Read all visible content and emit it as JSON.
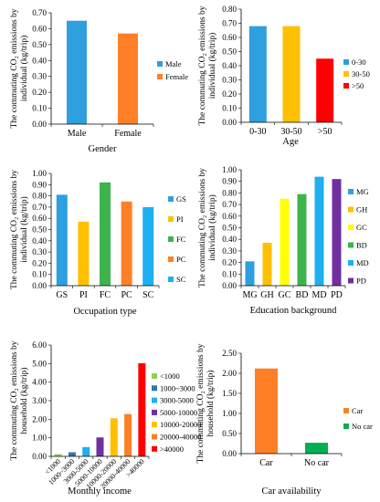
{
  "chart_data": [
    {
      "type": "bar",
      "ylabel_lines": [
        "The commuting CO₂ emissions by",
        "individual (kg/trip)"
      ],
      "xlabel": "Gender",
      "ylim": [
        0,
        0.7
      ],
      "yticks": [
        "0.00",
        "0.10",
        "0.20",
        "0.30",
        "0.40",
        "0.50",
        "0.60",
        "0.70"
      ],
      "categories": [
        "Male",
        "Female"
      ],
      "values": [
        0.65,
        0.57
      ],
      "colors": [
        "#2E9FDF",
        "#FF7F27"
      ],
      "legend": [
        "Male",
        "Female"
      ],
      "legend_placement": "right",
      "grid": false
    },
    {
      "type": "bar",
      "ylabel_lines": [
        "The commuting CO₂ emissions by",
        "individual (kg/trip)"
      ],
      "xlabel": "Age",
      "ylim": [
        0,
        0.8
      ],
      "yticks": [
        "0.00",
        "0.10",
        "0.20",
        "0.30",
        "0.40",
        "0.50",
        "0.60",
        "0.70",
        "0.80"
      ],
      "categories": [
        "0-30",
        "30-50",
        ">50"
      ],
      "values": [
        0.68,
        0.68,
        0.45
      ],
      "colors": [
        "#2E9FDF",
        "#FFC000",
        "#FF0000"
      ],
      "legend": [
        "0-30",
        "30-50",
        ">50"
      ],
      "legend_placement": "right",
      "grid": false
    },
    {
      "type": "bar",
      "ylabel_lines": [
        "The commuting CO₂ emissions by",
        "individual (kg/trip)"
      ],
      "xlabel": "Occupation type",
      "ylim": [
        0,
        1.0
      ],
      "yticks": [
        "0.00",
        "0.10",
        "0.20",
        "0.30",
        "0.40",
        "0.50",
        "0.60",
        "0.70",
        "0.80",
        "0.90",
        "1.00"
      ],
      "categories": [
        "GS",
        "PI",
        "FC",
        "PC",
        "SC"
      ],
      "values": [
        0.81,
        0.57,
        0.92,
        0.75,
        0.7
      ],
      "colors": [
        "#2E9FDF",
        "#FFC000",
        "#3CB44B",
        "#FF7F27",
        "#1EB0F0"
      ],
      "legend": [
        "GS",
        "PI",
        "FC",
        "PC",
        "SC"
      ],
      "legend_placement": "right",
      "grid": false
    },
    {
      "type": "bar",
      "ylabel_lines": [
        "The commuting CO₂ emissions by",
        "individual (kg/trip)"
      ],
      "xlabel": "Education background",
      "ylim": [
        0,
        1.0
      ],
      "yticks": [
        "0.00",
        "0.10",
        "0.20",
        "0.30",
        "0.40",
        "0.50",
        "0.60",
        "0.70",
        "0.80",
        "0.90",
        "1.00"
      ],
      "categories": [
        "MG",
        "GH",
        "GC",
        "BD",
        "MD",
        "PD"
      ],
      "values": [
        0.21,
        0.37,
        0.75,
        0.79,
        0.94,
        0.92
      ],
      "colors": [
        "#2E9FDF",
        "#FFC000",
        "#FFFF00",
        "#3CB44B",
        "#1EB0F0",
        "#7030A0"
      ],
      "legend": [
        "MG",
        "GH",
        "GC",
        "BD",
        "MD",
        "PD"
      ],
      "legend_placement": "right",
      "grid": false
    },
    {
      "type": "bar",
      "ylabel_lines": [
        "The commuting CO₂ emissions by",
        "household (kg/trip)"
      ],
      "xlabel": "Monthly income",
      "ylim": [
        0,
        6.0
      ],
      "yticks": [
        "0.00",
        "1.00",
        "2.00",
        "3.00",
        "4.00",
        "5.00",
        "6.00"
      ],
      "categories": [
        "<1000",
        "1000~3000",
        "3000-5000",
        "5000-10000",
        "10000-20000",
        "20000-40000",
        ">40000"
      ],
      "values": [
        0.12,
        0.22,
        0.5,
        1.02,
        2.05,
        2.28,
        5.02
      ],
      "colors": [
        "#92D050",
        "#2E75B6",
        "#1EB0F0",
        "#7030A0",
        "#FFC000",
        "#FF7F27",
        "#FF0000"
      ],
      "legend": [
        "<1000",
        "1000~3000",
        "3000-5000",
        "5000-10000",
        "10000-20000",
        "20000-40000",
        ">40000"
      ],
      "legend_placement": "right",
      "grid": false
    },
    {
      "type": "bar",
      "ylabel_lines": [
        "The commuting CO₂ emissions by",
        "household (kg/trip)"
      ],
      "xlabel": "Car availability",
      "ylim": [
        0,
        2.5
      ],
      "yticks": [
        "0.00",
        "0.50",
        "1.00",
        "1.50",
        "2.00",
        "2.50"
      ],
      "categories": [
        "Car",
        "No car"
      ],
      "values": [
        2.12,
        0.27
      ],
      "colors": [
        "#FF7F27",
        "#00B050"
      ],
      "legend": [
        "Car",
        "No car"
      ],
      "legend_placement": "right",
      "grid": false
    }
  ]
}
